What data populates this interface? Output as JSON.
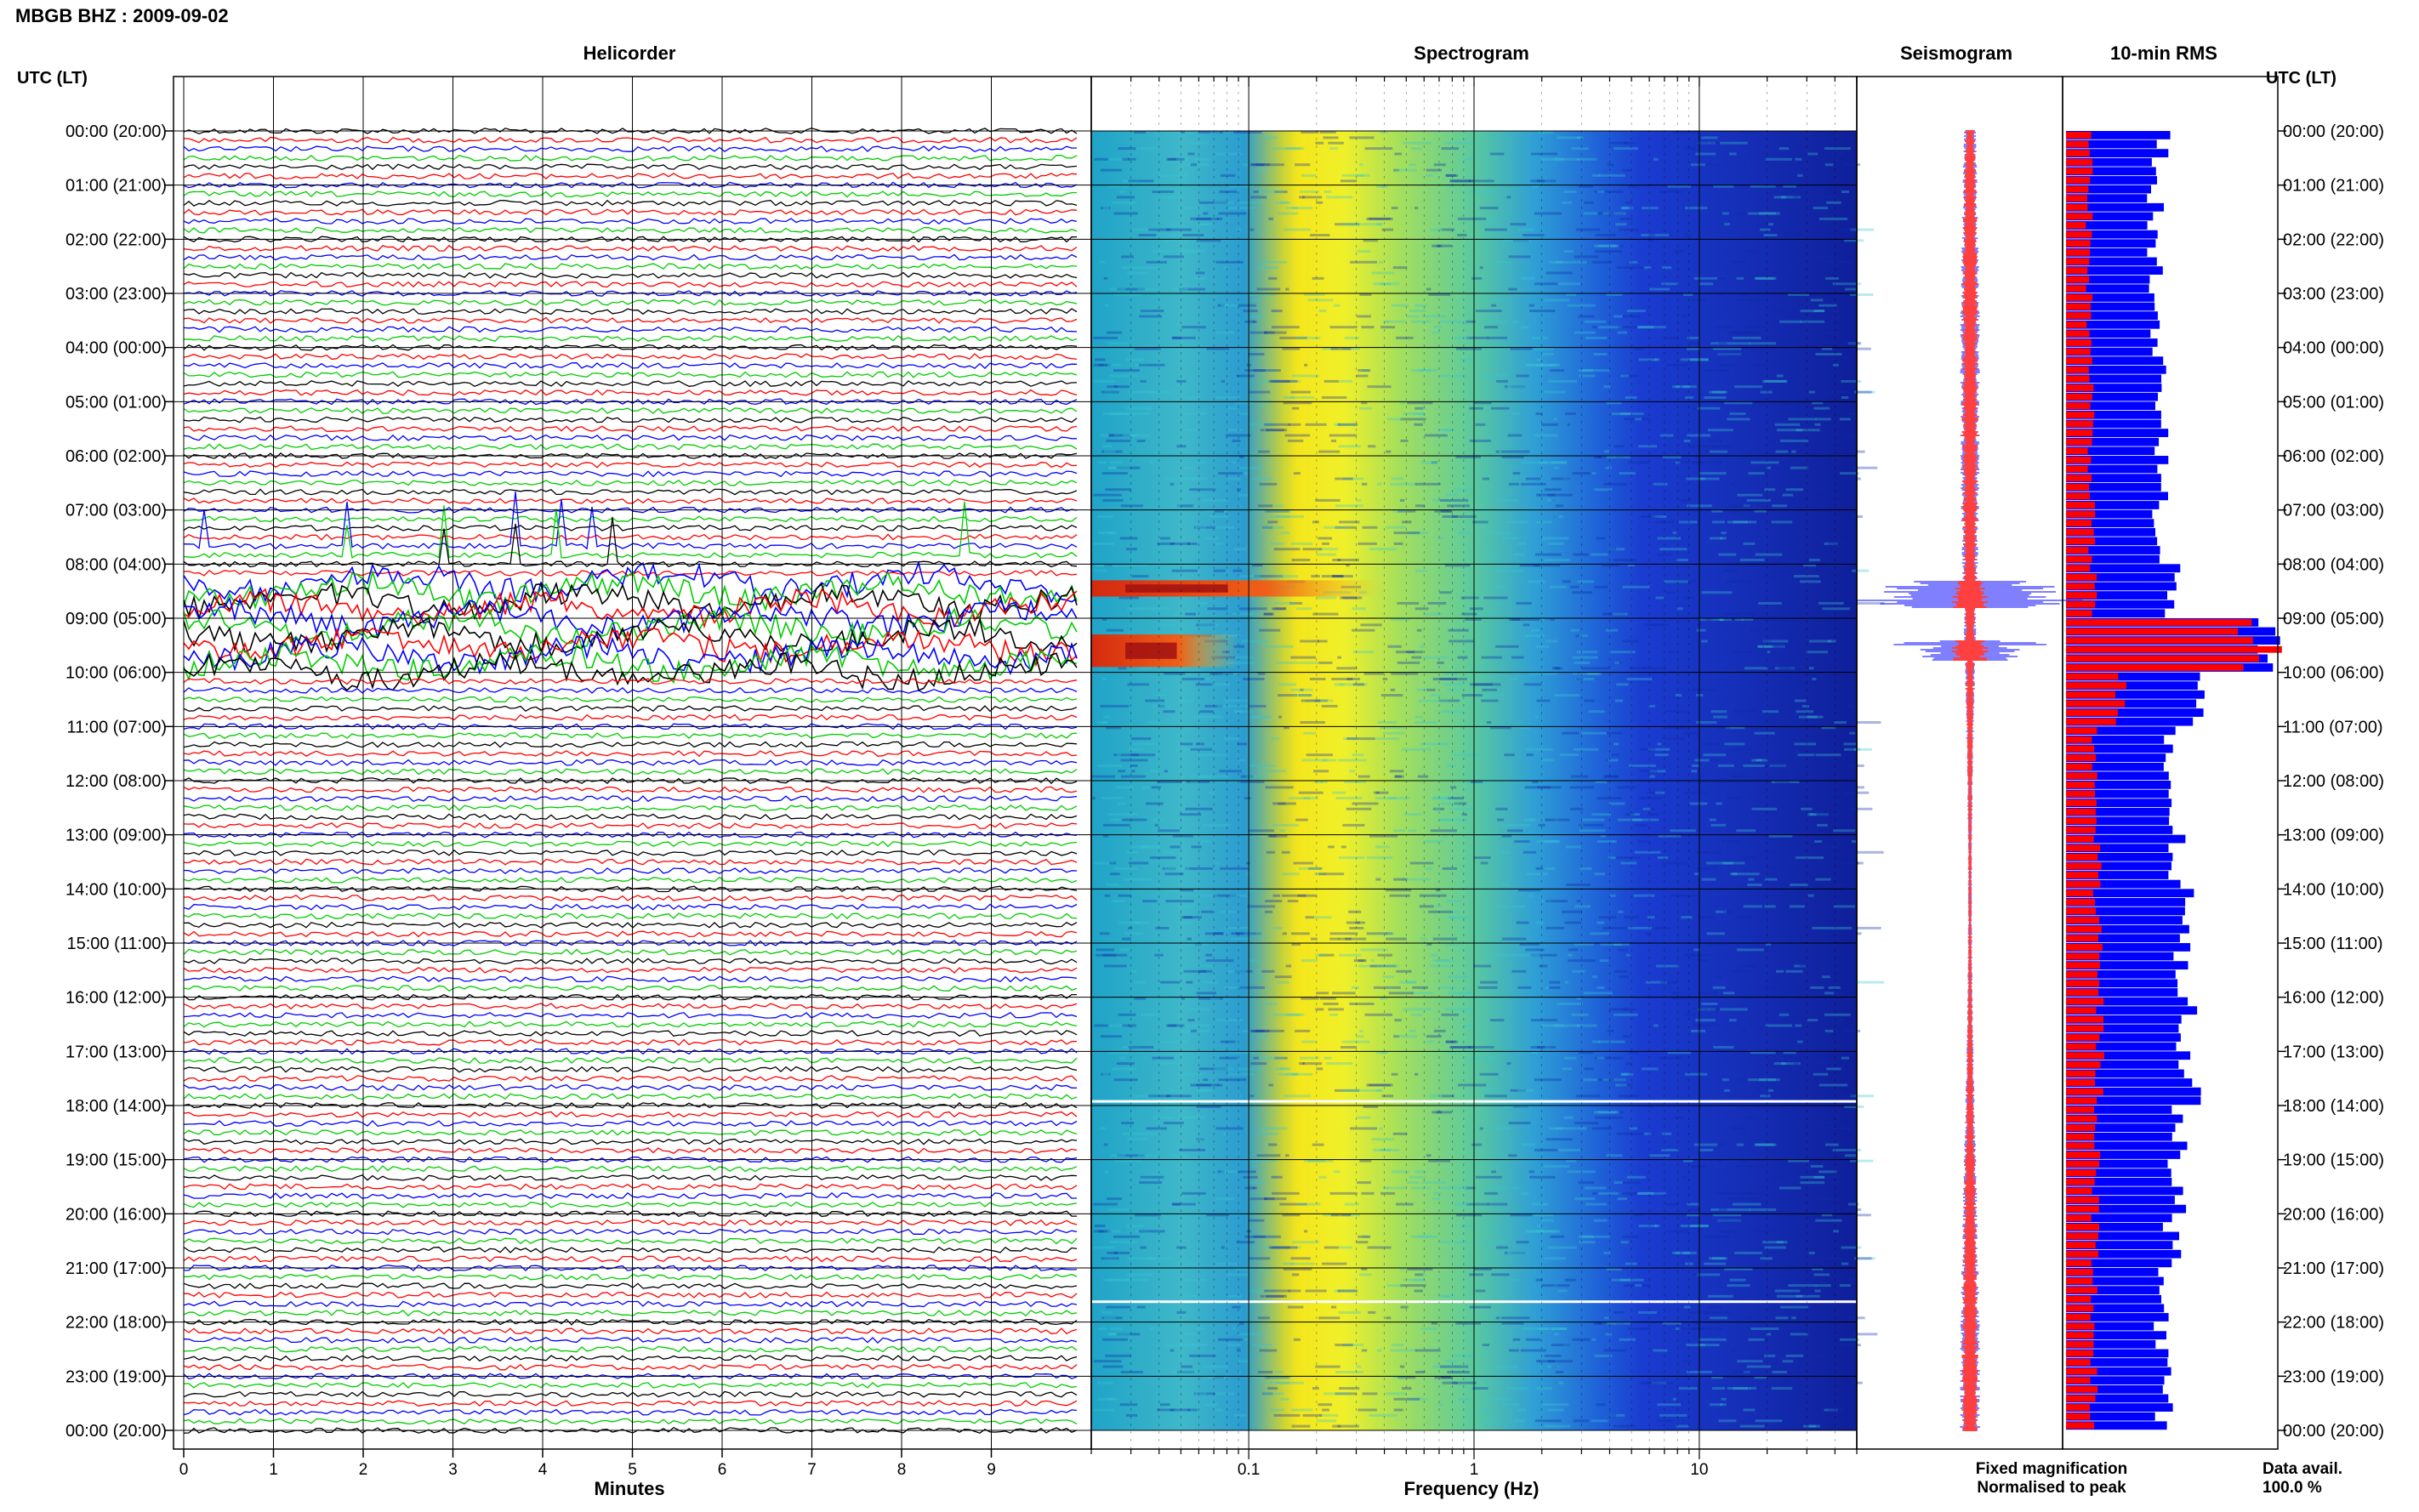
{
  "page": {
    "title": "MBGB BHZ : 2009-09-02",
    "left_axis_label": "UTC (LT)",
    "right_axis_label": "UTC (LT)",
    "bottom_legend": {
      "fixed": "Fixed magnification",
      "normalised": "Normalised to peak",
      "data_avail_label": "Data avail.",
      "data_avail_value": "100.0 %"
    },
    "colors": {
      "legend_fixed": "#0000ff",
      "legend_normalised": "#ff0000",
      "trace_colors": [
        "#000000",
        "#ff0000",
        "#0000ff",
        "#00cc00"
      ],
      "rms_fixed": "#0000ff",
      "rms_normalised": "#ff0000"
    }
  },
  "chart_data": [
    {
      "type": "line",
      "panel": "helicorder",
      "title": "Helicorder",
      "xlabel": "Minutes",
      "ylabel": "UTC (LT)",
      "xlim": [
        0,
        10
      ],
      "x_ticks": [
        0,
        1,
        2,
        3,
        4,
        5,
        6,
        7,
        8,
        9
      ],
      "ytick_labels": [
        "00:00 (20:00)",
        "01:00 (21:00)",
        "02:00 (22:00)",
        "03:00 (23:00)",
        "04:00 (00:00)",
        "05:00 (01:00)",
        "06:00 (02:00)",
        "07:00 (03:00)",
        "08:00 (04:00)",
        "09:00 (05:00)",
        "10:00 (06:00)",
        "11:00 (07:00)",
        "12:00 (08:00)",
        "13:00 (09:00)",
        "14:00 (10:00)",
        "15:00 (11:00)",
        "16:00 (12:00)",
        "17:00 (13:00)",
        "18:00 (14:00)",
        "19:00 (15:00)",
        "20:00 (16:00)",
        "21:00 (17:00)",
        "22:00 (18:00)",
        "23:00 (19:00)",
        "00:00 (20:00)"
      ],
      "lines_per_hour": 6,
      "event_window_hours": [
        8.2,
        10.0
      ],
      "spikes_hours": [
        7.6,
        8.0
      ],
      "grid": true
    },
    {
      "type": "heatmap",
      "panel": "spectrogram",
      "title": "Spectrogram",
      "xlabel": "Frequency (Hz)",
      "x_scale": "log",
      "xlim": [
        0.02,
        50
      ],
      "x_tick_labels": [
        "0.1",
        "1",
        "10"
      ],
      "x_tick_values": [
        0.1,
        1,
        10
      ],
      "y_range_hours": [
        0,
        24
      ],
      "microseism_peak_hz": [
        0.15,
        0.4
      ],
      "event_hours": [
        [
          8.3,
          8.6
        ],
        [
          9.3,
          9.9
        ]
      ],
      "event_peak_hz": [
        0.02,
        0.08
      ],
      "gaps_hours": [
        17.9,
        21.6
      ],
      "grid": true
    },
    {
      "type": "line",
      "panel": "seismogram",
      "title": "Seismogram",
      "series": [
        {
          "name": "Fixed magnification",
          "color": "#0000ff"
        },
        {
          "name": "Normalised to peak",
          "color": "#ff0000"
        }
      ],
      "event_hours": [
        8.3,
        9.5
      ],
      "y_range_hours": [
        0,
        24
      ]
    },
    {
      "type": "bar",
      "panel": "rms",
      "title": "10-min RMS",
      "orientation": "horizontal",
      "bins_per_hour": 6,
      "y_range_hours": [
        0,
        24
      ],
      "series": [
        {
          "name": "Fixed magnification",
          "color": "#0000ff",
          "hourly_level": [
            0.45,
            0.42,
            0.42,
            0.42,
            0.44,
            0.46,
            0.45,
            0.45,
            0.5,
            0.95,
            0.6,
            0.48,
            0.5,
            0.52,
            0.55,
            0.56,
            0.57,
            0.58,
            0.55,
            0.53,
            0.5,
            0.48,
            0.46,
            0.46,
            0.46
          ]
        },
        {
          "name": "Normalised to peak",
          "color": "#ff0000",
          "hourly_level": [
            0.12,
            0.11,
            0.11,
            0.11,
            0.12,
            0.12,
            0.12,
            0.12,
            0.13,
            0.9,
            0.25,
            0.13,
            0.14,
            0.15,
            0.15,
            0.15,
            0.16,
            0.16,
            0.15,
            0.14,
            0.14,
            0.13,
            0.13,
            0.13,
            0.13
          ]
        }
      ]
    }
  ]
}
